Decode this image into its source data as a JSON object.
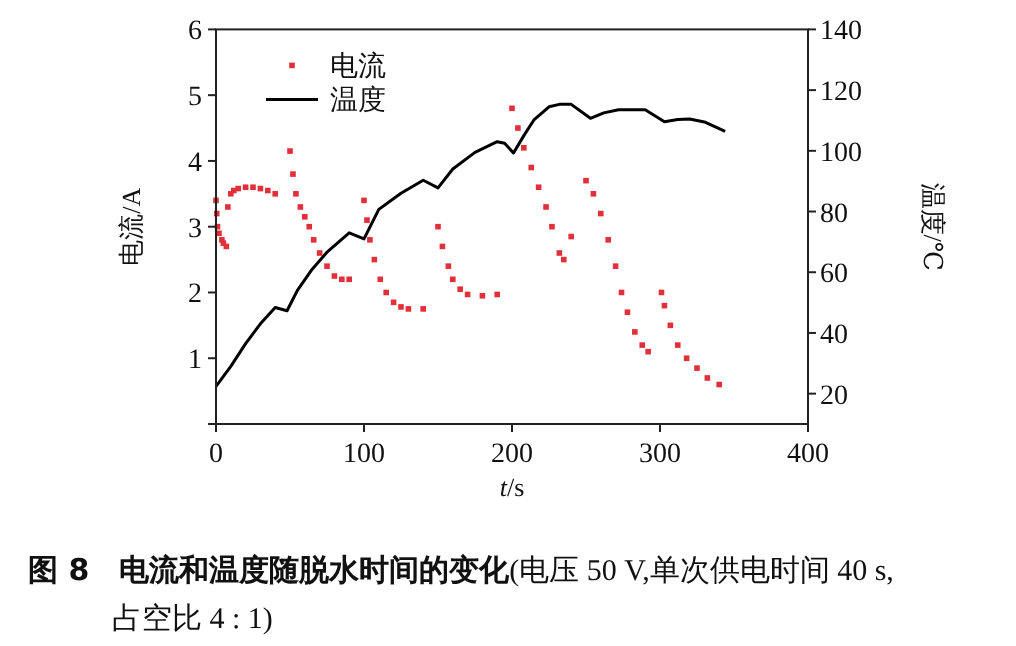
{
  "chart_data": {
    "type": "scatter",
    "title": "**图 8　电流和温度随脱水时间的变化**(电压 50 V,单次供电时间 40 s,占空比 4 : 1)",
    "xlabel": "*t*/s",
    "ylabel": "电流/A",
    "y2label": "温度/℃",
    "xlim": [
      0,
      400
    ],
    "xticks": [
      0,
      100,
      200,
      300,
      400
    ],
    "ylim": [
      0,
      6
    ],
    "yticks": [
      {
        "value": 0,
        "label": null
      },
      1,
      2,
      3,
      4,
      5,
      6
    ],
    "y2lim": [
      10,
      140
    ],
    "y2ticks": [
      20,
      40,
      60,
      80,
      100,
      120,
      140
    ],
    "legend": "top left",
    "grid": false,
    "series": [
      {
        "name": "电流",
        "marker": "square",
        "color": "#e0303a",
        "x": [
          0,
          0.5,
          1,
          2,
          4,
          5,
          7,
          8,
          10,
          12,
          15,
          20,
          25,
          30,
          35,
          40,
          50,
          52,
          54,
          57,
          60,
          63,
          66,
          70,
          75,
          80,
          85,
          90,
          100,
          102,
          104,
          107,
          111,
          115,
          120,
          125,
          130,
          140,
          150,
          153,
          157,
          160,
          165,
          170,
          180,
          190,
          200,
          204,
          208,
          213,
          218,
          223,
          227,
          232,
          235,
          240,
          250,
          255,
          260,
          265,
          270,
          274,
          278,
          283,
          288,
          292,
          301,
          303,
          307,
          312,
          318,
          325,
          332,
          340
        ],
        "values": [
          3.4,
          3.2,
          3.0,
          2.9,
          2.8,
          2.75,
          2.7,
          3.3,
          3.5,
          3.55,
          3.58,
          3.6,
          3.6,
          3.58,
          3.55,
          3.5,
          4.15,
          3.8,
          3.5,
          3.3,
          3.15,
          3.0,
          2.8,
          2.6,
          2.4,
          2.25,
          2.2,
          2.2,
          3.4,
          3.1,
          2.8,
          2.5,
          2.2,
          2.0,
          1.85,
          1.78,
          1.75,
          1.75,
          3.0,
          2.7,
          2.4,
          2.2,
          2.05,
          1.97,
          1.95,
          1.97,
          4.8,
          4.5,
          4.2,
          3.9,
          3.6,
          3.3,
          3.0,
          2.6,
          2.5,
          2.85,
          3.7,
          3.5,
          3.2,
          2.8,
          2.4,
          2.0,
          1.7,
          1.4,
          1.2,
          1.1,
          2.0,
          1.8,
          1.5,
          1.2,
          1.0,
          0.85,
          0.7,
          0.6
        ]
      },
      {
        "name": "温度",
        "type": "line",
        "axis": "y2",
        "marker": "none",
        "line_style": "solid",
        "color": "#000000",
        "x": [
          0,
          10,
          20,
          30,
          40,
          48,
          55,
          65,
          75,
          90,
          100,
          110,
          125,
          140,
          150,
          160,
          175,
          190,
          195,
          201,
          208,
          215,
          225,
          232,
          240,
          253,
          262,
          272,
          290,
          303,
          312,
          320,
          330,
          344
        ],
        "values": [
          22.4,
          29,
          36.5,
          43,
          48.4,
          47.3,
          54,
          61,
          66.6,
          73,
          71,
          80.7,
          86,
          90.3,
          87.8,
          94,
          99.5,
          103,
          102.5,
          99.3,
          105,
          110.3,
          114.5,
          115.3,
          115.3,
          110.7,
          112.5,
          113.5,
          113.5,
          109.6,
          110.3,
          110.5,
          109.5,
          106.4
        ]
      }
    ]
  }
}
